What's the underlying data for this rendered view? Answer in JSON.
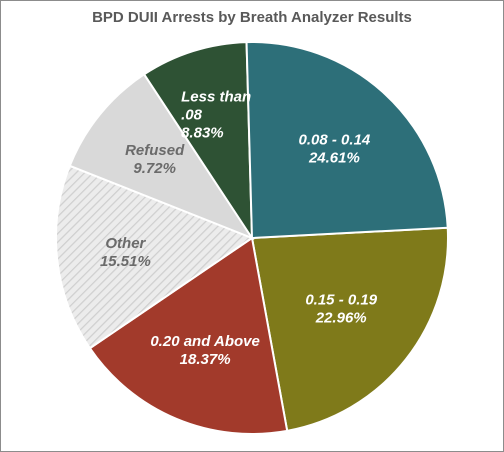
{
  "chart_data": {
    "type": "pie",
    "title": "BPD DUII Arrests by Breath Analyzer Results",
    "slices": [
      {
        "label_lines": [
          "0.15 - 0.19",
          "22.96%"
        ],
        "value": 22.96,
        "color": "#7f7a1a",
        "text_color": "#ffffff"
      },
      {
        "label_lines": [
          "0.20 and Above",
          "18.37%"
        ],
        "value": 18.37,
        "color": "#a23a2b",
        "text_color": "#ffffff"
      },
      {
        "label_lines": [
          "Other",
          "15.51%"
        ],
        "value": 15.51,
        "color": "#e6e6e6",
        "pattern": "diagonal-hatch",
        "text_color": "#6b6b6b"
      },
      {
        "label_lines": [
          "Refused",
          "9.72%"
        ],
        "value": 9.72,
        "color": "#d9d9d9",
        "text_color": "#6b6b6b"
      },
      {
        "label_lines": [
          "Less than",
          ".08",
          "8.83%"
        ],
        "value": 8.83,
        "color": "#2e5234",
        "text_color": "#ffffff"
      },
      {
        "label_lines": [
          "0.08 - 0.14",
          "24.61%"
        ],
        "value": 24.61,
        "color": "#2d6f79",
        "text_color": "#ffffff"
      }
    ],
    "legend": "none"
  }
}
